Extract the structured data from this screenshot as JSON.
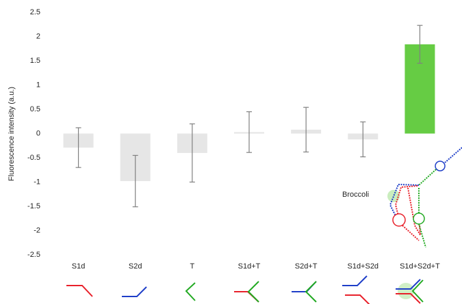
{
  "chart_data": {
    "type": "bar",
    "y_label": "Fluorescence intensity (a.u.)",
    "categories": [
      "S1d",
      "S2d",
      "T",
      "S1d+T",
      "S2d+T",
      "S1d+S2d",
      "S1d+S2d+T"
    ],
    "values": [
      -0.29,
      -0.98,
      -0.4,
      0.03,
      0.08,
      -0.12,
      1.84
    ],
    "errors": [
      0.41,
      0.53,
      0.6,
      0.42,
      0.46,
      0.36,
      0.39
    ],
    "colors": [
      "#e6e6e6",
      "#e6e6e6",
      "#e6e6e6",
      "#e6e6e6",
      "#e6e6e6",
      "#e6e6e6",
      "#66cc44"
    ],
    "error_color": "#808080",
    "ylim": [
      -2.5,
      2.5
    ],
    "yticks": [
      2.5,
      2,
      1.5,
      1,
      0.5,
      0,
      -0.5,
      -1,
      -1.5,
      -2,
      -2.5
    ],
    "grid": false,
    "annotation": "Broccoli"
  }
}
